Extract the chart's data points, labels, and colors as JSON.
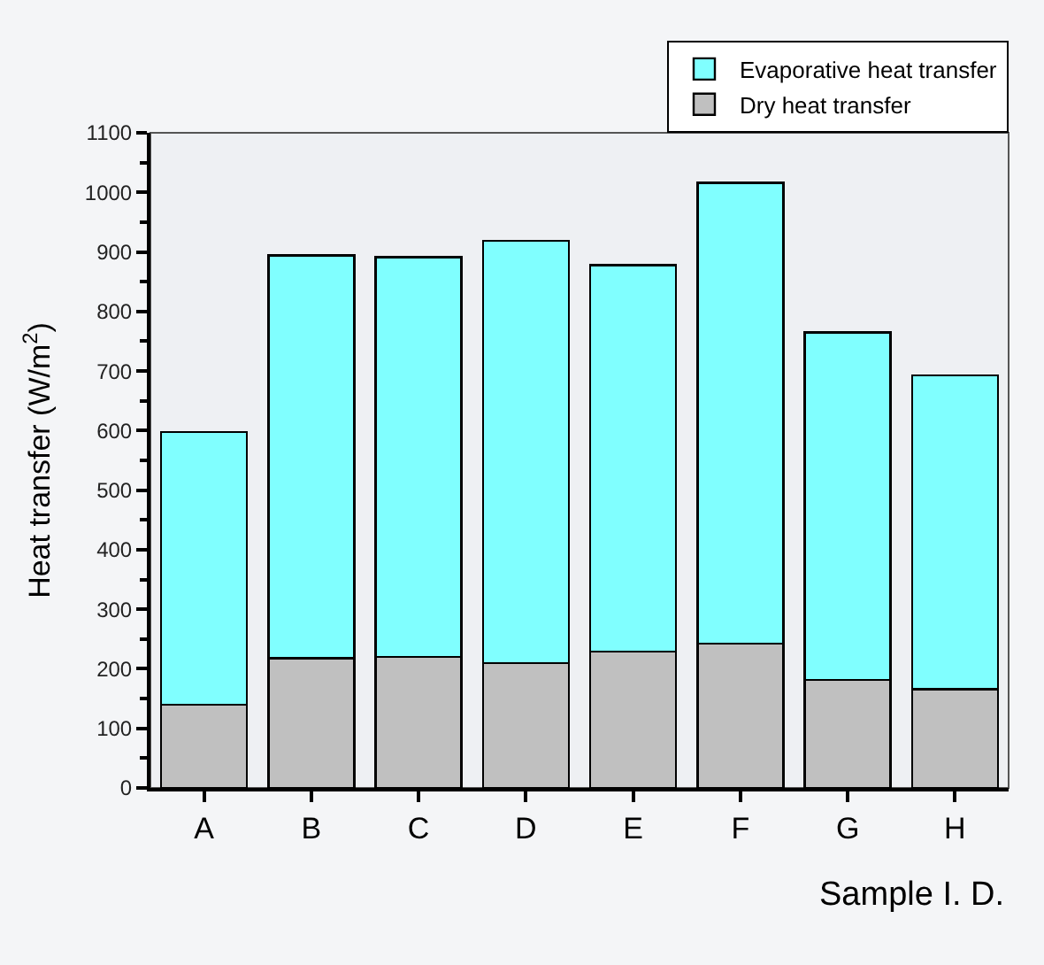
{
  "chart_data": {
    "type": "bar",
    "stacked": true,
    "xlabel": "Sample I. D.",
    "ylabel": "Heat transfer (W/m$^{2}$)",
    "categories": [
      "A",
      "B",
      "C",
      "D",
      "E",
      "F",
      "G",
      "H"
    ],
    "series": [
      {
        "name": "Dry heat transfer",
        "color": "#c0c0c0",
        "values": [
          140,
          218,
          220,
          210,
          229,
          242,
          181,
          166
        ]
      },
      {
        "name": "Evaporative heat transfer",
        "color": "#80ffff",
        "values": [
          458,
          676,
          671,
          709,
          649,
          774,
          584,
          527
        ]
      }
    ],
    "ylim": [
      0,
      1100
    ],
    "yticks": [
      0,
      100,
      200,
      300,
      400,
      500,
      600,
      700,
      800,
      900,
      1000,
      1100
    ],
    "grid": false,
    "legend": "top right"
  }
}
